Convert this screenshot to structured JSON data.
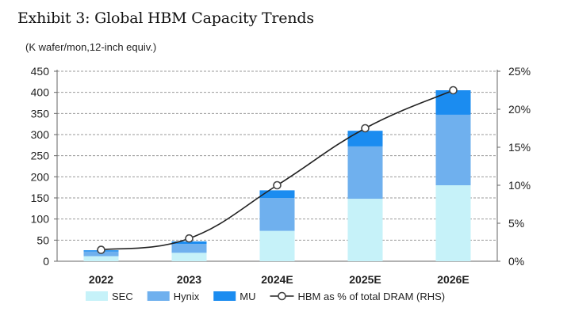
{
  "title": "Exhibit 3: Global HBM Capacity Trends",
  "chart_data": {
    "type": "bar",
    "stacked": true,
    "title": "Exhibit 3: Global HBM Capacity Trends",
    "subtitle": "(K wafer/mon,12-inch equiv.)",
    "categories": [
      "2022",
      "2023",
      "2024E",
      "2025E",
      "2026E"
    ],
    "series": [
      {
        "name": "SEC",
        "color": "#c6f2f9",
        "values": [
          12,
          20,
          72,
          148,
          180
        ]
      },
      {
        "name": "Hynix",
        "color": "#6fb0ee",
        "values": [
          11,
          21,
          78,
          124,
          167
        ]
      },
      {
        "name": "MU",
        "color": "#1b8cf0",
        "values": [
          3,
          6,
          18,
          37,
          58
        ]
      }
    ],
    "line": {
      "name": "HBM as % of total DRAM (RHS)",
      "axis": "right",
      "values": [
        1.5,
        3.0,
        10.0,
        17.5,
        22.5
      ]
    },
    "ylim": [
      0,
      450
    ],
    "yticks": [
      "0",
      "50",
      "100",
      "150",
      "200",
      "250",
      "300",
      "350",
      "400",
      "450"
    ],
    "y2lim": [
      0,
      25
    ],
    "y2ticks": [
      "0%",
      "5%",
      "10%",
      "15%",
      "20%",
      "25%"
    ],
    "grid": true,
    "legend": "bottom"
  }
}
